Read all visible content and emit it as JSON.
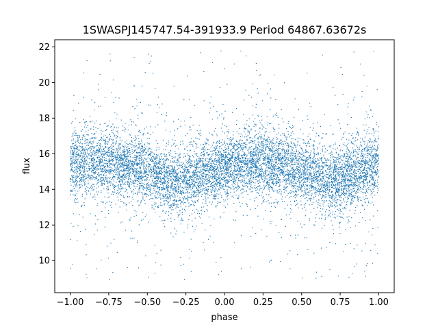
{
  "chart_data": {
    "type": "scatter",
    "title": "1SWASPJ145747.54-391933.9 Period 64867.63672s",
    "xlabel": "phase",
    "ylabel": "flux",
    "xlim": [
      -1.1,
      1.1
    ],
    "ylim": [
      8.2,
      22.4
    ],
    "xticks": [
      -1.0,
      -0.75,
      -0.5,
      -0.25,
      0.0,
      0.25,
      0.5,
      0.75,
      1.0
    ],
    "xtick_labels": [
      "−1.00",
      "−0.75",
      "−0.50",
      "−0.25",
      "0.00",
      "0.25",
      "0.50",
      "0.75",
      "1.00"
    ],
    "yticks": [
      10,
      12,
      14,
      16,
      18,
      20,
      22
    ],
    "ytick_labels": [
      "10",
      "12",
      "14",
      "16",
      "18",
      "20",
      "22"
    ],
    "grid": false,
    "legend": "none",
    "point_color": "#1f77b4",
    "series": [
      {
        "phase_range": [
          -1.0,
          1.0
        ],
        "mean_flux_profile": [
          {
            "phase": -1.0,
            "flux": 15.4
          },
          {
            "phase": -0.75,
            "flux": 15.6
          },
          {
            "phase": -0.5,
            "flux": 15.0
          },
          {
            "phase": -0.3,
            "flux": 14.4
          },
          {
            "phase": 0.0,
            "flux": 15.3
          },
          {
            "phase": 0.25,
            "flux": 15.6
          },
          {
            "phase": 0.5,
            "flux": 15.0
          },
          {
            "phase": 0.7,
            "flux": 14.4
          },
          {
            "phase": 1.0,
            "flux": 15.4
          }
        ],
        "core_band": [
          13.2,
          17.6
        ],
        "outlier_range": [
          8.8,
          21.8
        ]
      }
    ]
  }
}
